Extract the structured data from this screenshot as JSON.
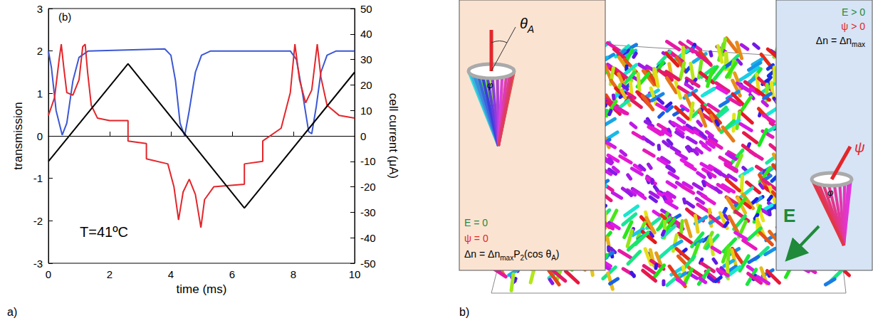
{
  "chart_data": {
    "type": "line",
    "annotations": [
      "(b)",
      "T=41ºC"
    ],
    "x_label": "time (ms)",
    "y_label": "transmission",
    "y2_label": "cell current (μA)",
    "xlim": [
      0,
      10
    ],
    "xticks": [
      0,
      2,
      4,
      6,
      8,
      10
    ],
    "ylim": [
      -3,
      3
    ],
    "yticks": [
      -3,
      -2,
      -1,
      0,
      1,
      2,
      3
    ],
    "y2lim": [
      -50,
      50
    ],
    "y2ticks": [
      -50,
      -40,
      -30,
      -20,
      -10,
      0,
      10,
      20,
      30,
      40,
      50
    ],
    "grid": false,
    "series": [
      {
        "color": "#3b57d4",
        "axis": "y",
        "x": [
          0,
          0.1,
          0.25,
          0.45,
          0.6,
          0.8,
          1.0,
          1.3,
          3.8,
          4.0,
          4.15,
          4.3,
          4.45,
          4.6,
          4.8,
          5.0,
          5.3,
          7.9,
          8.1,
          8.3,
          8.5,
          8.6,
          8.75,
          8.9,
          9.1,
          9.4,
          10
        ],
        "values": [
          2.0,
          1.6,
          0.6,
          0.02,
          0.3,
          1.3,
          1.85,
          2.0,
          2.05,
          1.9,
          1.3,
          0.3,
          0.0,
          0.6,
          1.5,
          1.9,
          2.0,
          2.0,
          1.8,
          1.0,
          0.1,
          0.05,
          0.7,
          1.5,
          1.9,
          2.0,
          2.0
        ]
      },
      {
        "color": "#e3262b",
        "axis": "y2",
        "x": [
          0,
          0.2,
          0.35,
          0.42,
          0.5,
          0.6,
          0.8,
          1.0,
          1.12,
          1.2,
          1.28,
          1.4,
          1.6,
          2.0,
          2.6,
          2.6,
          3.2,
          3.2,
          3.9,
          4.1,
          4.25,
          4.4,
          4.6,
          4.8,
          4.98,
          5.1,
          5.4,
          6.4,
          6.4,
          7.0,
          7.0,
          7.6,
          7.9,
          8.05,
          8.2,
          8.4,
          8.6,
          8.78,
          8.9,
          9.1,
          9.5,
          10
        ],
        "values": [
          8,
          15,
          30,
          36,
          27,
          17,
          16,
          22,
          35,
          36,
          25,
          12,
          7,
          6,
          6,
          -2,
          -3,
          -9,
          -11,
          -20,
          -33,
          -22,
          -17,
          -23,
          -36,
          -25,
          -20,
          -19,
          -11,
          -10,
          -2,
          3,
          17,
          36,
          22,
          13,
          18,
          36,
          23,
          12,
          8,
          7
        ]
      },
      {
        "color": "#000000",
        "axis": "y",
        "x": [
          0,
          2.6,
          6.4,
          10
        ],
        "values": [
          -0.6,
          1.7,
          -1.7,
          1.5
        ]
      }
    ]
  },
  "panel_labels": [
    "a)",
    "b)"
  ],
  "diagram": {
    "left_box": {
      "cone_labels": {
        "tilt": [
          {
            "t": "θ"
          },
          {
            "t": "A",
            "sub": true
          }
        ],
        "azimuth": [
          {
            "t": "φ"
          }
        ]
      },
      "lines": [
        {
          "color": "#1f8a3a",
          "parts": [
            {
              "t": "E = 0"
            }
          ]
        },
        {
          "color": "#e3262b",
          "parts": [
            {
              "t": "ψ = 0"
            }
          ]
        },
        {
          "color": "#000000",
          "parts": [
            {
              "t": "Δn = Δn"
            },
            {
              "t": "max",
              "sub": true
            },
            {
              "t": "P"
            },
            {
              "t": "2",
              "sub": true
            },
            {
              "t": "(cos θ"
            },
            {
              "t": "A",
              "sub": true
            },
            {
              "t": ")"
            }
          ]
        }
      ]
    },
    "right_box": {
      "lines": [
        {
          "color": "#1f8a3a",
          "parts": [
            {
              "t": "E > 0"
            }
          ]
        },
        {
          "color": "#e3262b",
          "parts": [
            {
              "t": "ψ > 0"
            }
          ]
        },
        {
          "color": "#000000",
          "parts": [
            {
              "t": "Δn = Δn"
            },
            {
              "t": "max",
              "sub": true
            }
          ]
        }
      ],
      "cone_labels": {
        "tilt": [
          {
            "t": "ψ"
          }
        ],
        "azimuth": [
          {
            "t": "φ"
          }
        ]
      },
      "field_label": "E"
    }
  }
}
